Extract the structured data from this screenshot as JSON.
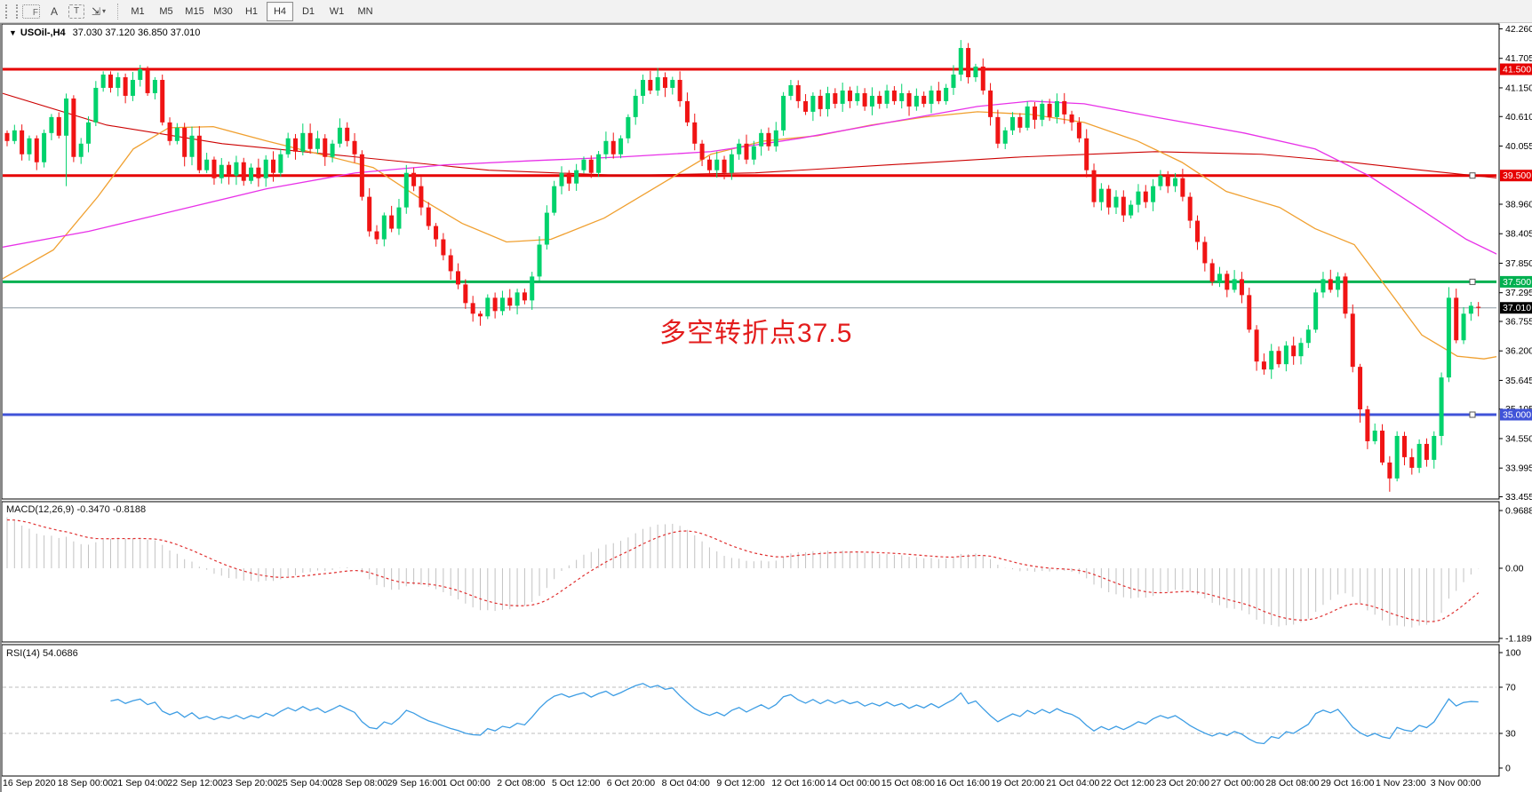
{
  "toolbar": {
    "tools": [
      {
        "name": "fibonacci-tool",
        "glyph": "F"
      },
      {
        "name": "text-label-tool",
        "glyph": "A"
      },
      {
        "name": "text-box-tool",
        "glyph": "T"
      },
      {
        "name": "arrow-tools",
        "glyph": "⇲"
      }
    ],
    "dropdown_caret": "▾",
    "timeframes": [
      "M1",
      "M5",
      "M15",
      "M30",
      "H1",
      "H4",
      "D1",
      "W1",
      "MN"
    ],
    "active_timeframe": "H4"
  },
  "chart_header": {
    "dropdown_icon": "▼",
    "symbol": "USOil-,H4",
    "ohlc": "37.030 37.120 36.850 37.010"
  },
  "annotation": {
    "text": "多空转折点37.5",
    "color": "#e31c1c"
  },
  "chart_data": {
    "type": "candlestick-multi-panel",
    "symbol": "USOil",
    "timeframe": "H4",
    "last_open": 37.03,
    "last_high": 37.12,
    "last_low": 36.85,
    "last_close": 37.01,
    "price_axis_ticks": [
      42.26,
      41.705,
      41.15,
      40.61,
      40.055,
      38.96,
      38.405,
      37.85,
      37.295,
      36.755,
      36.2,
      35.645,
      35.105,
      34.55,
      33.995,
      33.455
    ],
    "level_lines": [
      {
        "name": "resistance-41.5",
        "price": 41.5,
        "color": "#e60000",
        "width": 3,
        "badge": "41.500",
        "handle": false
      },
      {
        "name": "support-39.5",
        "price": 39.5,
        "color": "#e60000",
        "width": 3,
        "badge": "39.500",
        "handle": true
      },
      {
        "name": "pivot-37.5",
        "price": 37.5,
        "color": "#00b050",
        "width": 3,
        "badge": "37.500",
        "handle": true
      },
      {
        "name": "support-35.0",
        "price": 35.0,
        "color": "#4053d8",
        "width": 3,
        "badge": "35.000",
        "handle": true
      }
    ],
    "current_price": {
      "value": 37.01,
      "badge": "37.010",
      "line_color": "#8d9aa5",
      "badge_color": "#000000"
    },
    "colors": {
      "up": "#00d26c",
      "down": "#f01414",
      "macd_hist": "#c2c2c2",
      "macd_signal": "#e03030",
      "rsi_line": "#3d9de4",
      "ma_red": "#cc0000",
      "ma_orange": "#f0a030",
      "ma_magenta": "#e832e8"
    },
    "candles": {
      "first_open": 40.3,
      "closes": [
        40.15,
        40.35,
        39.9,
        40.2,
        39.75,
        40.3,
        40.6,
        40.25,
        40.95,
        39.85,
        40.1,
        40.5,
        41.15,
        41.4,
        41.15,
        41.35,
        41.0,
        41.3,
        41.5,
        41.05,
        41.3,
        40.5,
        40.15,
        40.4,
        39.85,
        40.25,
        39.6,
        39.8,
        39.45,
        39.7,
        39.5,
        39.75,
        39.4,
        39.65,
        39.45,
        39.8,
        39.55,
        39.9,
        40.2,
        39.95,
        40.3,
        40.0,
        40.2,
        39.85,
        40.1,
        40.4,
        40.15,
        39.9,
        39.1,
        38.45,
        38.3,
        38.75,
        38.5,
        38.9,
        39.55,
        39.3,
        38.9,
        38.55,
        38.3,
        38.0,
        37.7,
        37.45,
        37.1,
        36.9,
        36.85,
        37.2,
        36.95,
        37.2,
        37.05,
        37.3,
        37.15,
        37.6,
        38.2,
        38.8,
        39.3,
        39.55,
        39.35,
        39.6,
        39.8,
        39.55,
        39.9,
        40.15,
        39.9,
        40.2,
        40.6,
        41.0,
        41.3,
        41.1,
        41.35,
        41.15,
        41.3,
        40.9,
        40.5,
        40.1,
        39.8,
        39.6,
        39.8,
        39.55,
        39.9,
        40.1,
        39.8,
        40.05,
        40.3,
        40.05,
        40.35,
        41.0,
        41.2,
        40.9,
        40.7,
        41.0,
        40.75,
        41.05,
        40.85,
        41.1,
        40.9,
        41.05,
        40.8,
        41.0,
        40.85,
        41.1,
        40.9,
        41.05,
        40.8,
        41.0,
        40.85,
        41.1,
        40.9,
        41.15,
        41.4,
        41.9,
        41.35,
        41.55,
        41.1,
        40.6,
        40.1,
        40.35,
        40.6,
        40.4,
        40.8,
        40.55,
        40.85,
        40.6,
        40.9,
        40.65,
        40.5,
        40.2,
        39.6,
        39.0,
        39.25,
        38.9,
        39.1,
        38.75,
        38.95,
        39.2,
        39.0,
        39.3,
        39.5,
        39.3,
        39.45,
        39.1,
        38.65,
        38.25,
        37.85,
        37.5,
        37.65,
        37.35,
        37.55,
        37.25,
        36.6,
        36.0,
        35.85,
        36.2,
        35.95,
        36.3,
        36.1,
        36.35,
        36.6,
        37.3,
        37.55,
        37.35,
        37.6,
        36.9,
        35.9,
        35.1,
        34.5,
        34.7,
        34.1,
        33.8,
        34.6,
        34.2,
        34.0,
        34.45,
        34.15,
        34.6,
        35.7,
        37.2,
        36.4,
        36.9,
        37.05,
        37.01
      ],
      "open_overrides": {
        "199": 37.03
      },
      "wick_overrides": {
        "8": {
          "low": 39.3
        },
        "63": {
          "low": 36.75
        },
        "129": {
          "high": 42.05
        },
        "183": {
          "low": 34.85
        },
        "187": {
          "low": 33.55
        },
        "195": {
          "high": 37.4
        },
        "199": {
          "high": 37.12,
          "low": 36.85
        }
      }
    },
    "ma_overlays": [
      {
        "name": "ma-slow-red",
        "color": "#cc0000",
        "w": 1.1,
        "points": [
          [
            2,
            41.05
          ],
          [
            120,
            40.45
          ],
          [
            250,
            40.1
          ],
          [
            400,
            39.85
          ],
          [
            550,
            39.6
          ],
          [
            700,
            39.5
          ],
          [
            850,
            39.55
          ],
          [
            1000,
            39.7
          ],
          [
            1150,
            39.85
          ],
          [
            1300,
            39.95
          ],
          [
            1420,
            39.9
          ],
          [
            1520,
            39.75
          ],
          [
            1600,
            39.6
          ],
          [
            1687,
            39.45
          ]
        ]
      },
      {
        "name": "ma-mid-orange",
        "color": "#f0a030",
        "w": 1.3,
        "points": [
          [
            2,
            37.55
          ],
          [
            60,
            38.1
          ],
          [
            110,
            39.1
          ],
          [
            150,
            40.0
          ],
          [
            190,
            40.4
          ],
          [
            240,
            40.42
          ],
          [
            300,
            40.15
          ],
          [
            360,
            39.9
          ],
          [
            420,
            39.65
          ],
          [
            470,
            39.1
          ],
          [
            520,
            38.6
          ],
          [
            570,
            38.25
          ],
          [
            620,
            38.3
          ],
          [
            680,
            38.7
          ],
          [
            740,
            39.3
          ],
          [
            800,
            39.9
          ],
          [
            860,
            40.15
          ],
          [
            920,
            40.25
          ],
          [
            980,
            40.45
          ],
          [
            1040,
            40.6
          ],
          [
            1100,
            40.7
          ],
          [
            1160,
            40.65
          ],
          [
            1220,
            40.5
          ],
          [
            1280,
            40.15
          ],
          [
            1330,
            39.75
          ],
          [
            1380,
            39.2
          ],
          [
            1440,
            38.9
          ],
          [
            1480,
            38.5
          ],
          [
            1524,
            38.2
          ],
          [
            1560,
            37.4
          ],
          [
            1600,
            36.5
          ],
          [
            1640,
            36.1
          ],
          [
            1670,
            36.05
          ],
          [
            1687,
            36.1
          ]
        ]
      },
      {
        "name": "ma-slowest-magenta",
        "color": "#e832e8",
        "w": 1.3,
        "points": [
          [
            2,
            38.15
          ],
          [
            100,
            38.45
          ],
          [
            200,
            38.85
          ],
          [
            300,
            39.25
          ],
          [
            400,
            39.55
          ],
          [
            500,
            39.7
          ],
          [
            600,
            39.78
          ],
          [
            700,
            39.85
          ],
          [
            800,
            39.95
          ],
          [
            900,
            40.2
          ],
          [
            1000,
            40.5
          ],
          [
            1100,
            40.8
          ],
          [
            1160,
            40.9
          ],
          [
            1220,
            40.85
          ],
          [
            1300,
            40.6
          ],
          [
            1400,
            40.3
          ],
          [
            1480,
            40.0
          ],
          [
            1540,
            39.5
          ],
          [
            1600,
            38.85
          ],
          [
            1650,
            38.3
          ],
          [
            1687,
            38.0
          ]
        ]
      }
    ],
    "macd": {
      "label_full": "MACD(12,26,9) -0.3470 -0.8188",
      "label": "MACD(12,26,9)",
      "value_main": -0.347,
      "value_signal": -0.8188,
      "axis_ticks": [
        0.9688,
        0.0,
        -1.1896
      ],
      "fast": 12,
      "slow": 26,
      "signal": 9
    },
    "rsi": {
      "label_full": "RSI(14) 54.0686",
      "label": "RSI(14)",
      "value": 54.0686,
      "period": 14,
      "axis_ticks": [
        100,
        70,
        30,
        0
      ],
      "levels": [
        70,
        30
      ]
    },
    "time_labels": [
      "16 Sep 2020",
      "18 Sep 00:00",
      "21 Sep 04:00",
      "22 Sep 12:00",
      "23 Sep 20:00",
      "25 Sep 04:00",
      "28 Sep 08:00",
      "29 Sep 16:00",
      "1 Oct 00:00",
      "2 Oct 08:00",
      "5 Oct 12:00",
      "6 Oct 20:00",
      "8 Oct 04:00",
      "9 Oct 12:00",
      "12 Oct 16:00",
      "14 Oct 00:00",
      "15 Oct 08:00",
      "16 Oct 16:00",
      "19 Oct 20:00",
      "21 Oct 04:00",
      "22 Oct 12:00",
      "23 Oct 20:00",
      "27 Oct 00:00",
      "28 Oct 08:00",
      "29 Oct 16:00",
      "1 Nov 23:00",
      "3 Nov 00:00"
    ]
  }
}
